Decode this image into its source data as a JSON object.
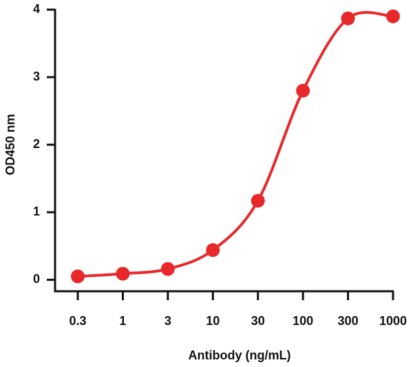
{
  "chart_data": {
    "type": "line",
    "x_label": "Antibody (ng/mL)",
    "y_label": "OD450 nm",
    "categories": [
      "0.3",
      "1",
      "3",
      "10",
      "30",
      "100",
      "300",
      "1000"
    ],
    "series": [
      {
        "name": "Antibody",
        "color": "#e8282b",
        "values": [
          0.05,
          0.09,
          0.16,
          0.44,
          1.17,
          2.8,
          3.87,
          3.9
        ]
      }
    ],
    "ylim": [
      -0.17,
      4
    ],
    "yticks": [
      0,
      1,
      2,
      3,
      4
    ],
    "grid": false
  }
}
